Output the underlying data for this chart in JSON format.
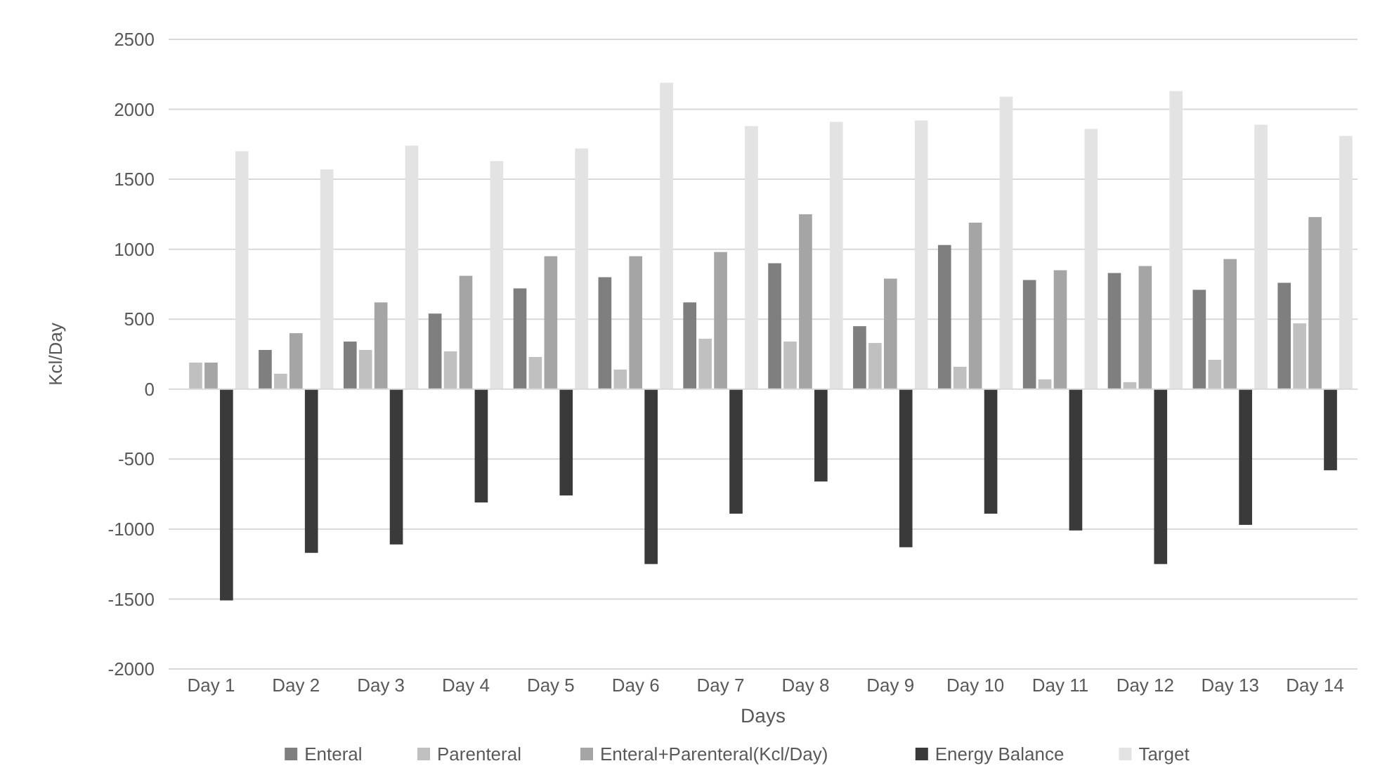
{
  "chart_data": {
    "type": "bar",
    "xlabel": "Days",
    "ylabel": "Kcl/Day",
    "categories": [
      "Day 1",
      "Day 2",
      "Day 3",
      "Day 4",
      "Day 5",
      "Day 6",
      "Day 7",
      "Day 8",
      "Day 9",
      "Day 10",
      "Day 11",
      "Day 12",
      "Day 13",
      "Day 14"
    ],
    "series": [
      {
        "name": "Enteral",
        "color": "#7f7f7f",
        "values": [
          0,
          280,
          340,
          540,
          720,
          800,
          620,
          900,
          450,
          1030,
          780,
          830,
          710,
          760
        ]
      },
      {
        "name": "Parenteral",
        "color": "#c0c0c0",
        "values": [
          190,
          110,
          280,
          270,
          230,
          140,
          360,
          340,
          330,
          160,
          70,
          50,
          210,
          470
        ]
      },
      {
        "name": "Enteral+Parenteral(Kcl/Day)",
        "color": "#a5a5a5",
        "values": [
          190,
          400,
          620,
          810,
          950,
          950,
          980,
          1250,
          790,
          1190,
          850,
          880,
          930,
          1230
        ]
      },
      {
        "name": "Energy Balance",
        "color": "#3a3a3a",
        "values": [
          -1510,
          -1170,
          -1110,
          -810,
          -760,
          -1250,
          -890,
          -660,
          -1130,
          -890,
          -1010,
          -1250,
          -970,
          -580
        ]
      },
      {
        "name": "Target",
        "color": "#e3e3e3",
        "values": [
          1700,
          1570,
          1740,
          1630,
          1720,
          2190,
          1880,
          1910,
          1920,
          2090,
          1860,
          2130,
          1890,
          1810
        ]
      }
    ],
    "ylim": [
      -2000,
      2500
    ],
    "yticks": [
      -2000,
      -1500,
      -1000,
      -500,
      0,
      500,
      1000,
      1500,
      2000,
      2500
    ],
    "grid": "y",
    "legend": "bottom"
  }
}
